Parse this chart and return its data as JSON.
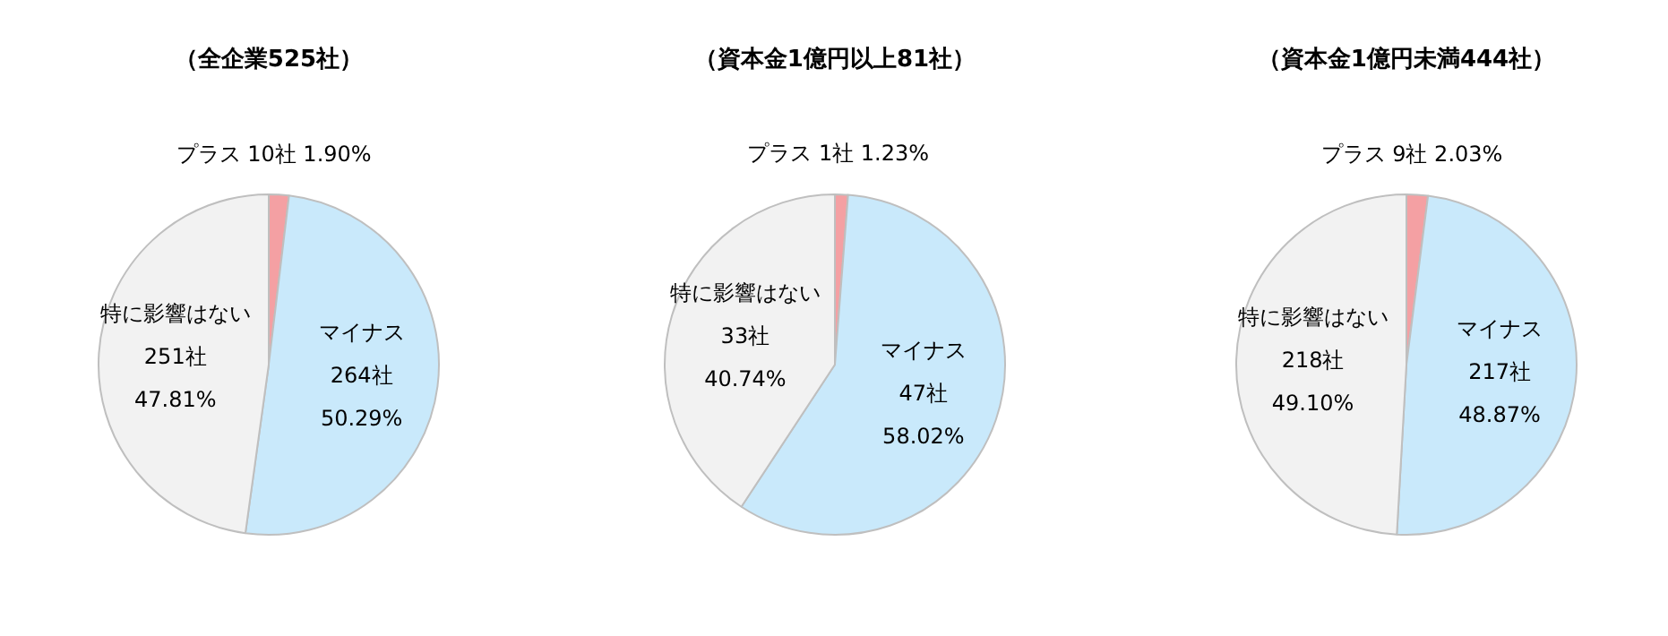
{
  "chart_data": [
    {
      "type": "pie",
      "title": "（全企業525社）",
      "categories": [
        "プラス",
        "マイナス",
        "特に影響はない"
      ],
      "values": [
        10,
        264,
        251
      ],
      "value_labels": [
        "10社 1.90%",
        "264社 50.29%",
        "251社 47.81%"
      ],
      "colors": [
        "#f4a0a3",
        "#c9e9fb",
        "#f2f2f2"
      ],
      "legend": false
    },
    {
      "type": "pie",
      "title": "（資本金1億円以上81社）",
      "categories": [
        "プラス",
        "マイナス",
        "特に影響はない"
      ],
      "values": [
        1,
        47,
        33
      ],
      "value_labels": [
        "1社 1.23%",
        "47社 58.02%",
        "33社 40.74%"
      ],
      "colors": [
        "#f4a0a3",
        "#c9e9fb",
        "#f2f2f2"
      ],
      "legend": false
    },
    {
      "type": "pie",
      "title": "（資本金1億円未満444社）",
      "categories": [
        "プラス",
        "マイナス",
        "特に影響はない"
      ],
      "values": [
        9,
        217,
        218
      ],
      "value_labels": [
        "9社 2.03%",
        "217社 48.87%",
        "218社 49.10%"
      ],
      "colors": [
        "#f4a0a3",
        "#c9e9fb",
        "#f2f2f2"
      ],
      "legend": false
    }
  ]
}
